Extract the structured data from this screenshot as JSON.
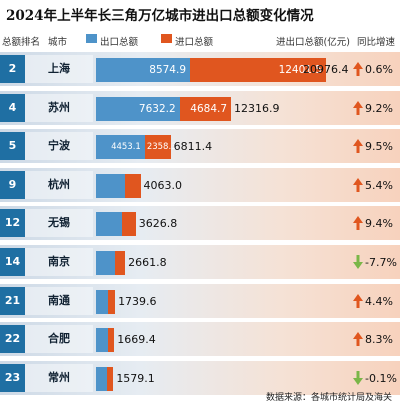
{
  "title": "2024年上半年长三角万亿城市进出口总额变化情况",
  "header": {
    "rank_label": "总额排名",
    "city_label": "城市",
    "export_label": "出口总额",
    "import_label": "进口总额",
    "total_label": "进出口总额(亿元)",
    "growth_label": "同比增速"
  },
  "colors": {
    "export": "#4e93c9",
    "import": "#e0561f",
    "rank": "#1f6fa3",
    "up": "#e0561f",
    "down": "#7ab648"
  },
  "chart_data": {
    "type": "bar",
    "stacked": true,
    "orientation": "horizontal",
    "series": [
      {
        "name": "出口总额",
        "values": [
          8574.9,
          7632.2,
          4453.1,
          null,
          null,
          null,
          null,
          null,
          null
        ]
      },
      {
        "name": "进口总额",
        "values": [
          12401.5,
          4684.7,
          2358.3,
          null,
          null,
          null,
          null,
          null,
          null
        ]
      }
    ],
    "rows": [
      {
        "rank": "2",
        "city": "上海",
        "export": "8574.9",
        "import": "12401.5",
        "total": "20976.4",
        "growth": "0.6%",
        "dir": "up",
        "total_value": 20976.4,
        "export_value": 8574.9,
        "import_value": 12401.5
      },
      {
        "rank": "4",
        "city": "苏州",
        "export": "7632.2",
        "import": "4684.7",
        "total": "12316.9",
        "growth": "9.2%",
        "dir": "up",
        "total_value": 12316.9,
        "export_value": 7632.2,
        "import_value": 4684.7
      },
      {
        "rank": "5",
        "city": "宁波",
        "export": "4453.1",
        "import": "2358.3",
        "total": "6811.4",
        "growth": "9.5%",
        "dir": "up",
        "total_value": 6811.4,
        "export_value": 4453.1,
        "import_value": 2358.3
      },
      {
        "rank": "9",
        "city": "杭州",
        "export": "",
        "import": "",
        "total": "4063.0",
        "growth": "5.4%",
        "dir": "up",
        "total_value": 4063.0
      },
      {
        "rank": "12",
        "city": "无锡",
        "export": "",
        "import": "",
        "total": "3626.8",
        "growth": "9.4%",
        "dir": "up",
        "total_value": 3626.8
      },
      {
        "rank": "14",
        "city": "南京",
        "export": "",
        "import": "",
        "total": "2661.8",
        "growth": "-7.7%",
        "dir": "down",
        "total_value": 2661.8
      },
      {
        "rank": "21",
        "city": "南通",
        "export": "",
        "import": "",
        "total": "1739.6",
        "growth": "4.4%",
        "dir": "up",
        "total_value": 1739.6
      },
      {
        "rank": "22",
        "city": "合肥",
        "export": "",
        "import": "",
        "total": "1669.4",
        "growth": "8.3%",
        "dir": "up",
        "total_value": 1669.4
      },
      {
        "rank": "23",
        "city": "常州",
        "export": "",
        "import": "",
        "total": "1579.1",
        "growth": "-0.1%",
        "dir": "down",
        "total_value": 1579.1
      }
    ],
    "xlim": [
      0,
      20976.4
    ],
    "grid": false,
    "legend": "top"
  },
  "source": "数据来源：各城市统计局及海关"
}
